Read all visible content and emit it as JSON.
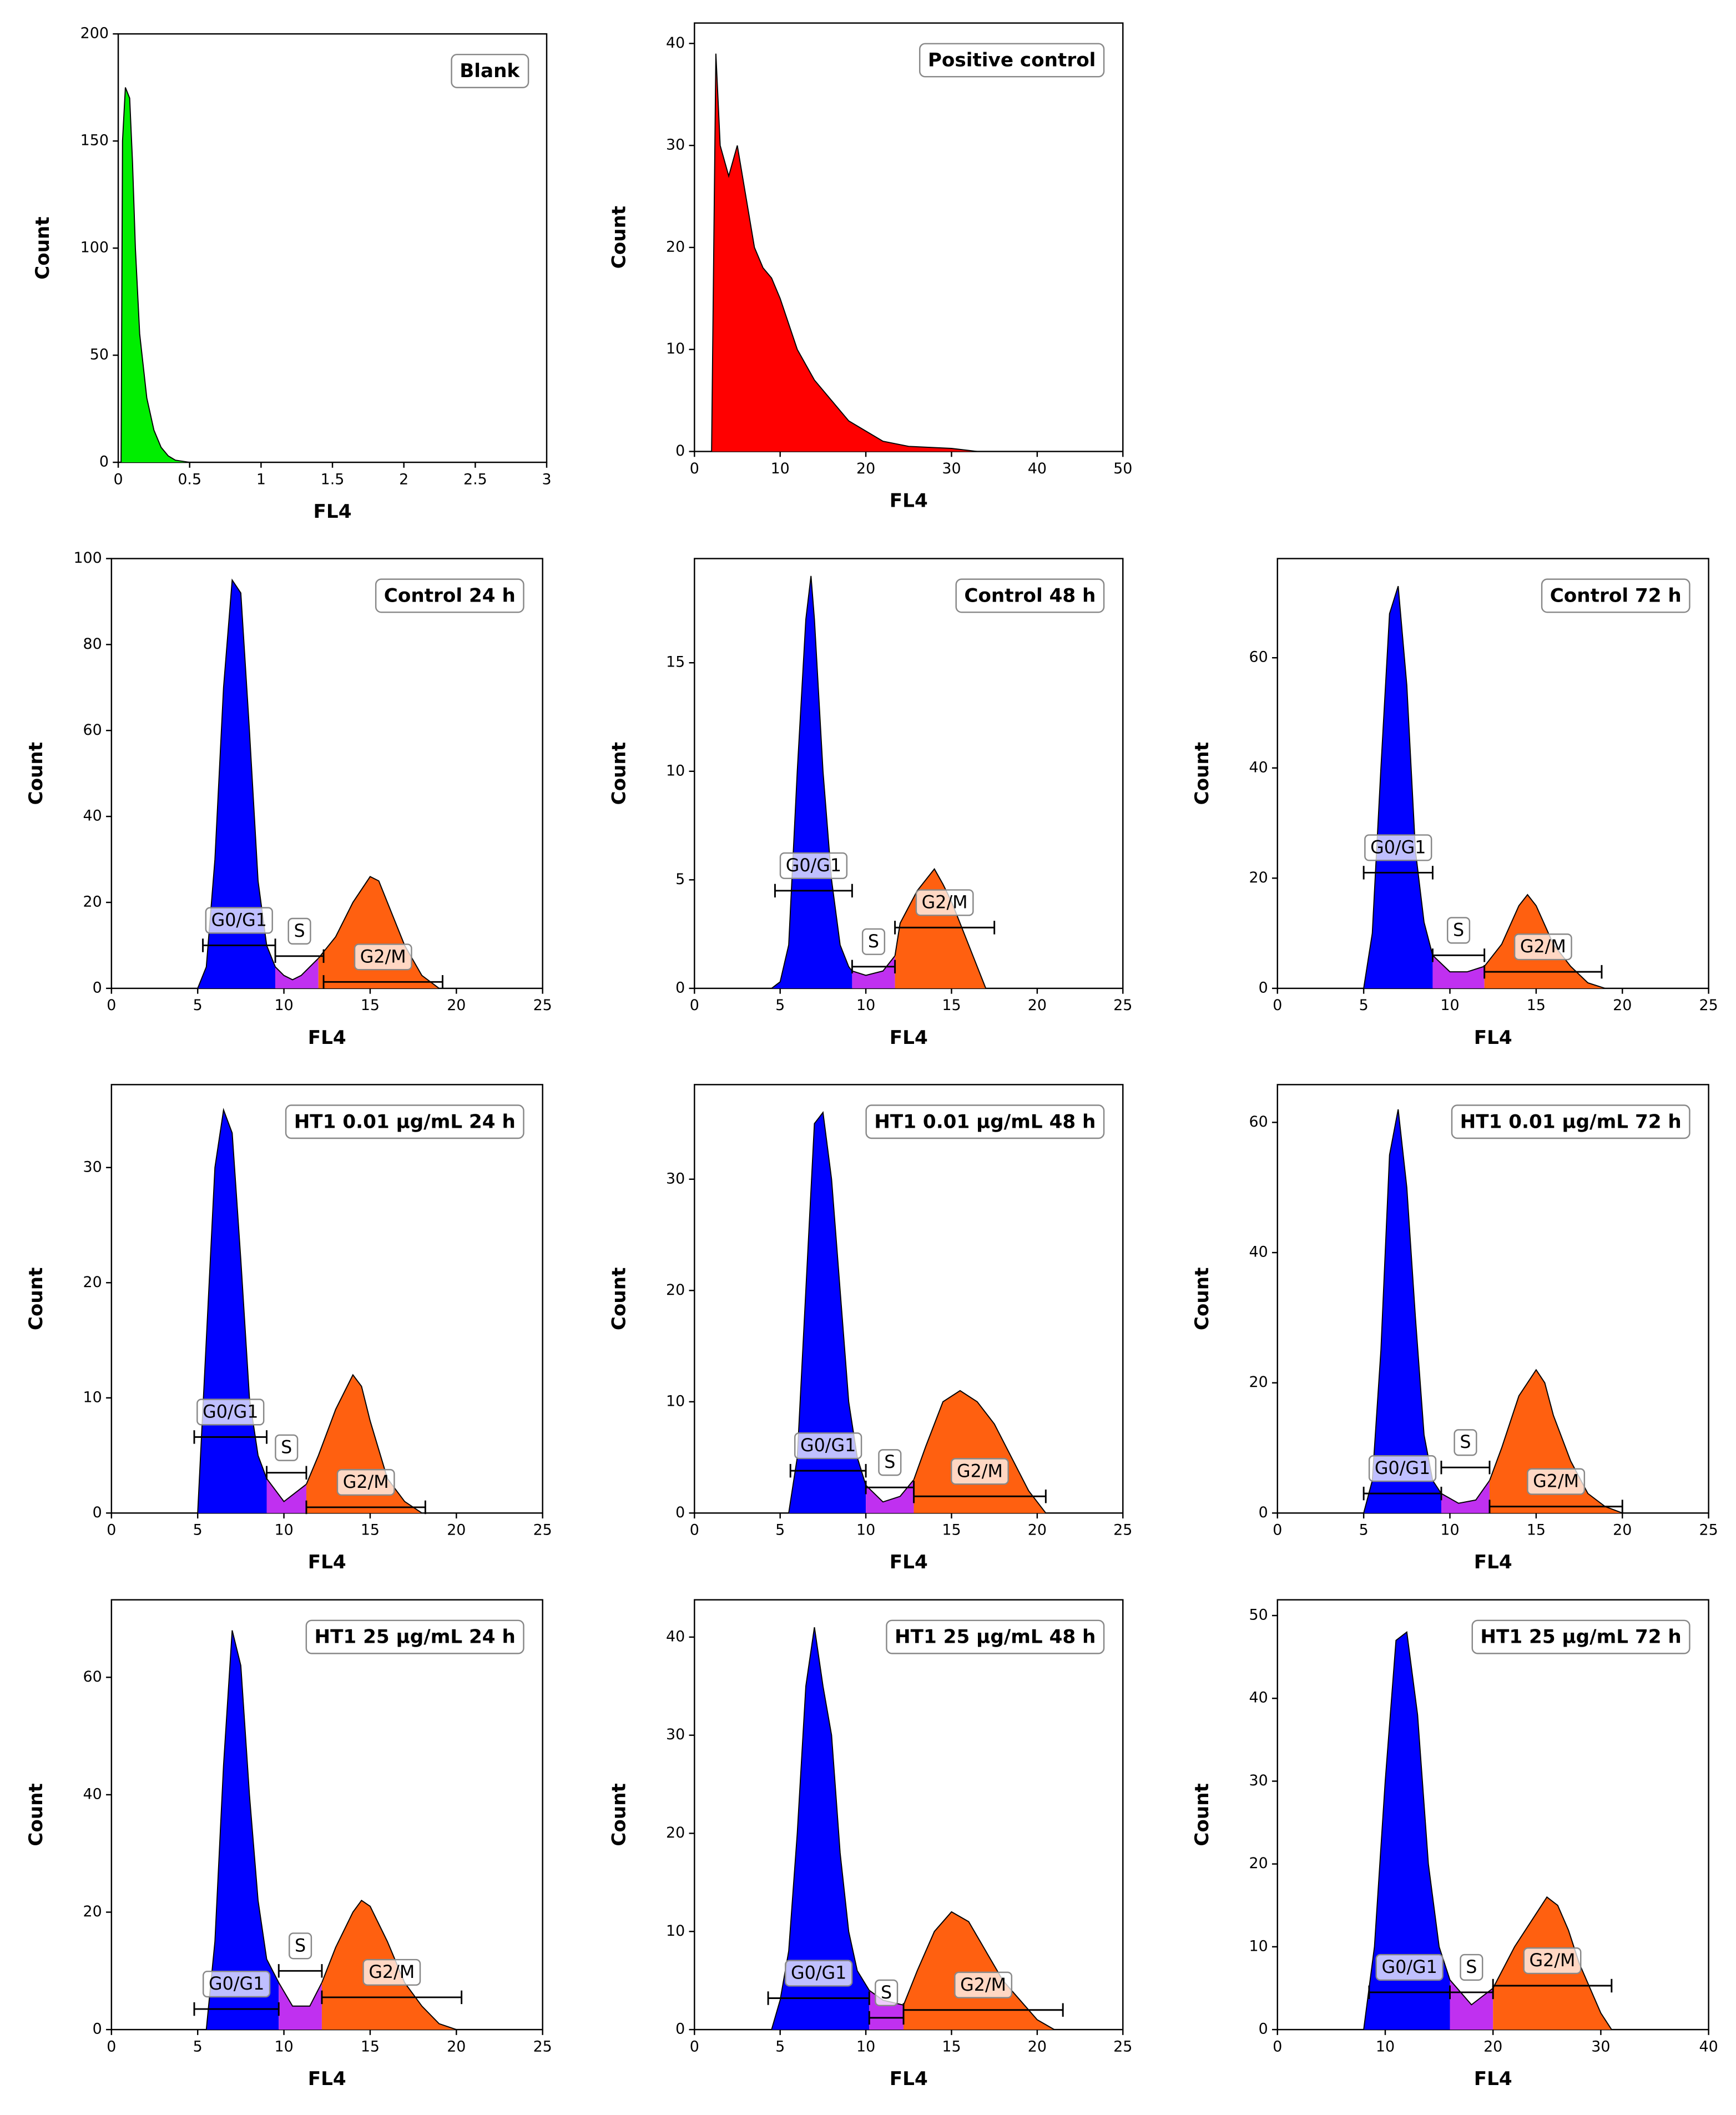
{
  "chart_data": [
    {
      "type": "area",
      "title": "Blank",
      "xlabel": "FL4",
      "ylabel": "Count",
      "xlim": [
        0,
        3
      ],
      "xticks": [
        0,
        0.5,
        1,
        1.5,
        2,
        2.5,
        3
      ],
      "ylim": [
        0,
        200
      ],
      "yticks": [
        0,
        50,
        100,
        150,
        200
      ],
      "series": [
        {
          "color": "#00ee00",
          "x": [
            0.02,
            0.03,
            0.05,
            0.08,
            0.1,
            0.12,
            0.15,
            0.2,
            0.25,
            0.3,
            0.35,
            0.4,
            0.5
          ],
          "values": [
            0,
            150,
            175,
            170,
            140,
            100,
            60,
            30,
            15,
            7,
            3,
            1,
            0
          ]
        }
      ],
      "gates": []
    },
    {
      "type": "area",
      "title": "Positive control",
      "xlabel": "FL4",
      "ylabel": "Count",
      "xlim": [
        0,
        50
      ],
      "xticks": [
        0,
        10,
        20,
        30,
        40,
        50
      ],
      "ylim": [
        0,
        42
      ],
      "yticks": [
        0,
        10,
        20,
        30,
        40
      ],
      "series": [
        {
          "color": "#ff0000",
          "x": [
            2,
            2.5,
            3,
            4,
            5,
            6,
            7,
            8,
            9,
            10,
            12,
            14,
            16,
            18,
            20,
            22,
            25,
            30,
            33
          ],
          "values": [
            0,
            39,
            30,
            27,
            30,
            25,
            20,
            18,
            17,
            15,
            10,
            7,
            5,
            3,
            2,
            1,
            0.5,
            0.3,
            0
          ]
        }
      ],
      "gates": []
    },
    {
      "type": "area",
      "title": "Control 24 h",
      "xlabel": "FL4",
      "ylabel": "Count",
      "xlim": [
        0,
        25
      ],
      "xticks": [
        0,
        5,
        10,
        15,
        20,
        25
      ],
      "ylim": [
        0,
        100
      ],
      "yticks": [
        0,
        20,
        40,
        60,
        80,
        100
      ],
      "series": [
        {
          "color": "#0000ff",
          "x": [
            5,
            5.5,
            6,
            6.5,
            7,
            7.5,
            8,
            8.5,
            9,
            9.5
          ],
          "values": [
            0,
            5,
            30,
            70,
            95,
            92,
            60,
            25,
            10,
            5
          ]
        },
        {
          "color": "#c030f0",
          "x": [
            9.5,
            10,
            10.5,
            11,
            11.5,
            12
          ],
          "values": [
            5,
            3,
            2,
            3,
            5,
            7
          ]
        },
        {
          "color": "#ff6010",
          "x": [
            12,
            13,
            14,
            15,
            15.5,
            16,
            17,
            18,
            19
          ],
          "values": [
            7,
            12,
            20,
            26,
            25,
            20,
            10,
            3,
            0
          ]
        }
      ],
      "gates": [
        {
          "label": "G0/G1",
          "x": [
            5.3,
            9.5
          ],
          "y": 10
        },
        {
          "label": "S",
          "x": [
            9.5,
            12.3
          ],
          "y": 7.5
        },
        {
          "label": "G2/M",
          "x": [
            12.3,
            19.2
          ],
          "y": 1.5
        }
      ]
    },
    {
      "type": "area",
      "title": "Control 48 h",
      "xlabel": "FL4",
      "ylabel": "Count",
      "xlim": [
        0,
        25
      ],
      "xticks": [
        0,
        5,
        10,
        15,
        20,
        25
      ],
      "ylim": [
        0,
        19.8
      ],
      "yticks": [
        0,
        5,
        10,
        15
      ],
      "series": [
        {
          "color": "#0000ff",
          "x": [
            4.5,
            5,
            5.5,
            6,
            6.5,
            6.8,
            7,
            7.5,
            8,
            8.5,
            9,
            9.2
          ],
          "values": [
            0,
            0.3,
            2,
            10,
            17,
            19,
            17,
            10,
            5,
            2,
            1,
            0.8
          ]
        },
        {
          "color": "#c030f0",
          "x": [
            9.2,
            10,
            11,
            11.7
          ],
          "values": [
            0.8,
            0.6,
            0.8,
            1.5
          ]
        },
        {
          "color": "#ff6010",
          "x": [
            11.7,
            12,
            13,
            14,
            14.5,
            15,
            15.5,
            16,
            16.5,
            17
          ],
          "values": [
            1.5,
            3,
            4.5,
            5.5,
            4.8,
            4,
            3,
            2,
            1,
            0
          ]
        }
      ],
      "gates": [
        {
          "label": "G0/G1",
          "x": [
            4.7,
            9.2
          ],
          "y": 4.5
        },
        {
          "label": "S",
          "x": [
            9.2,
            11.7
          ],
          "y": 1
        },
        {
          "label": "G2/M",
          "x": [
            11.7,
            17.5
          ],
          "y": 2.8
        }
      ]
    },
    {
      "type": "area",
      "title": "Control 72 h",
      "xlabel": "FL4",
      "ylabel": "Count",
      "xlim": [
        0,
        25
      ],
      "xticks": [
        0,
        5,
        10,
        15,
        20,
        25
      ],
      "ylim": [
        0,
        78
      ],
      "yticks": [
        0,
        20,
        40,
        60
      ],
      "series": [
        {
          "color": "#0000ff",
          "x": [
            5,
            5.5,
            6,
            6.5,
            7,
            7.5,
            8,
            8.5,
            9
          ],
          "values": [
            0,
            10,
            40,
            68,
            73,
            55,
            25,
            12,
            6
          ]
        },
        {
          "color": "#c030f0",
          "x": [
            9,
            10,
            11,
            12
          ],
          "values": [
            6,
            3,
            3,
            4
          ]
        },
        {
          "color": "#ff6010",
          "x": [
            12,
            13,
            14,
            14.5,
            15,
            16,
            17,
            18,
            19
          ],
          "values": [
            4,
            8,
            15,
            17,
            15,
            8,
            4,
            1,
            0
          ]
        }
      ],
      "gates": [
        {
          "label": "G0/G1",
          "x": [
            5,
            9
          ],
          "y": 21
        },
        {
          "label": "S",
          "x": [
            9,
            12
          ],
          "y": 6
        },
        {
          "label": "G2/M",
          "x": [
            12,
            18.8
          ],
          "y": 3
        }
      ]
    },
    {
      "type": "area",
      "title": "HT1 0.01 μg/mL 24 h",
      "xlabel": "FL4",
      "ylabel": "Count",
      "xlim": [
        0,
        25
      ],
      "xticks": [
        0,
        5,
        10,
        15,
        20,
        25
      ],
      "ylim": [
        0,
        37.2
      ],
      "yticks": [
        0,
        10,
        20,
        30
      ],
      "series": [
        {
          "color": "#0000ff",
          "x": [
            5,
            5.5,
            6,
            6.5,
            7,
            7.5,
            8,
            8.5,
            9
          ],
          "values": [
            0,
            15,
            30,
            35,
            33,
            22,
            10,
            5,
            3
          ]
        },
        {
          "color": "#c030f0",
          "x": [
            9,
            10,
            11.3
          ],
          "values": [
            3,
            1,
            2.5
          ]
        },
        {
          "color": "#ff6010",
          "x": [
            11.3,
            12,
            13,
            14,
            14.5,
            15,
            16,
            17,
            18
          ],
          "values": [
            2.5,
            5,
            9,
            12,
            11,
            8,
            3,
            1,
            0
          ]
        }
      ],
      "gates": [
        {
          "label": "G0/G1",
          "x": [
            4.8,
            9
          ],
          "y": 6.6
        },
        {
          "label": "S",
          "x": [
            9,
            11.3
          ],
          "y": 3.5
        },
        {
          "label": "G2/M",
          "x": [
            11.3,
            18.2
          ],
          "y": 0.5
        }
      ]
    },
    {
      "type": "area",
      "title": "HT1 0.01 μg/mL 48 h",
      "xlabel": "FL4",
      "ylabel": "Count",
      "xlim": [
        0,
        25
      ],
      "xticks": [
        0,
        5,
        10,
        15,
        20,
        25
      ],
      "ylim": [
        0,
        38.5
      ],
      "yticks": [
        0,
        10,
        20,
        30
      ],
      "series": [
        {
          "color": "#0000ff",
          "x": [
            5.5,
            6,
            6.5,
            7,
            7.5,
            8,
            8.5,
            9,
            9.5,
            10
          ],
          "values": [
            0,
            5,
            20,
            35,
            36,
            30,
            20,
            10,
            5,
            2.5
          ]
        },
        {
          "color": "#c030f0",
          "x": [
            10,
            11,
            12,
            12.8
          ],
          "values": [
            2.5,
            1,
            1.5,
            3
          ]
        },
        {
          "color": "#ff6010",
          "x": [
            12.8,
            13.5,
            14.5,
            15.5,
            16.5,
            17.5,
            18.5,
            19.5,
            20.5
          ],
          "values": [
            3,
            6,
            10,
            11,
            10,
            8,
            5,
            2,
            0
          ]
        }
      ],
      "gates": [
        {
          "label": "G0/G1",
          "x": [
            5.6,
            10
          ],
          "y": 3.8
        },
        {
          "label": "S",
          "x": [
            10,
            12.8
          ],
          "y": 2.3
        },
        {
          "label": "G2/M",
          "x": [
            12.8,
            20.5
          ],
          "y": 1.5
        }
      ]
    },
    {
      "type": "area",
      "title": "HT1 0.01 μg/mL 72 h",
      "xlabel": "FL4",
      "ylabel": "Count",
      "xlim": [
        0,
        25
      ],
      "xticks": [
        0,
        5,
        10,
        15,
        20,
        25
      ],
      "ylim": [
        0,
        65.8
      ],
      "yticks": [
        0,
        20,
        40,
        60
      ],
      "series": [
        {
          "color": "#0000ff",
          "x": [
            5,
            5.5,
            6,
            6.5,
            7,
            7.5,
            8,
            8.5,
            9,
            9.5
          ],
          "values": [
            0,
            5,
            25,
            55,
            62,
            50,
            30,
            12,
            5,
            3
          ]
        },
        {
          "color": "#c030f0",
          "x": [
            9.5,
            10.5,
            11.5,
            12.3
          ],
          "values": [
            3,
            1.5,
            2,
            5
          ]
        },
        {
          "color": "#ff6010",
          "x": [
            12.3,
            13,
            14,
            15,
            15.5,
            16,
            17,
            18,
            19,
            20
          ],
          "values": [
            5,
            10,
            18,
            22,
            20,
            15,
            8,
            3,
            1,
            0
          ]
        }
      ],
      "gates": [
        {
          "label": "G0/G1",
          "x": [
            5,
            9.5
          ],
          "y": 3
        },
        {
          "label": "S",
          "x": [
            9.5,
            12.3
          ],
          "y": 7
        },
        {
          "label": "G2/M",
          "x": [
            12.3,
            20
          ],
          "y": 1
        }
      ]
    },
    {
      "type": "area",
      "title": "HT1 25 μg/mL 24 h",
      "xlabel": "FL4",
      "ylabel": "Count",
      "xlim": [
        0,
        25
      ],
      "xticks": [
        0,
        5,
        10,
        15,
        20,
        25
      ],
      "ylim": [
        0,
        73.2
      ],
      "yticks": [
        0,
        20,
        40,
        60
      ],
      "series": [
        {
          "color": "#0000ff",
          "x": [
            5.5,
            6,
            6.5,
            7,
            7.5,
            8,
            8.5,
            9,
            9.7
          ],
          "values": [
            0,
            15,
            45,
            68,
            62,
            40,
            22,
            12,
            8
          ]
        },
        {
          "color": "#c030f0",
          "x": [
            9.7,
            10.5,
            11.5,
            12.2
          ],
          "values": [
            8,
            4,
            4,
            8
          ]
        },
        {
          "color": "#ff6010",
          "x": [
            12.2,
            13,
            14,
            14.5,
            15,
            16,
            17,
            18,
            19,
            20
          ],
          "values": [
            8,
            14,
            20,
            22,
            21,
            15,
            8,
            4,
            1,
            0
          ]
        }
      ],
      "gates": [
        {
          "label": "G0/G1",
          "x": [
            4.8,
            9.7
          ],
          "y": 3.5
        },
        {
          "label": "S",
          "x": [
            9.7,
            12.2
          ],
          "y": 10
        },
        {
          "label": "G2/M",
          "x": [
            12.2,
            20.3
          ],
          "y": 5.5
        }
      ]
    },
    {
      "type": "area",
      "title": "HT1 25 μg/mL 48 h",
      "xlabel": "FL4",
      "ylabel": "Count",
      "xlim": [
        0,
        25
      ],
      "xticks": [
        0,
        5,
        10,
        15,
        20,
        25
      ],
      "ylim": [
        0,
        43.8
      ],
      "yticks": [
        0,
        10,
        20,
        30,
        40
      ],
      "series": [
        {
          "color": "#0000ff",
          "x": [
            4.5,
            5,
            5.5,
            6,
            6.5,
            7,
            7.5,
            8,
            8.5,
            9,
            9.5,
            10.2
          ],
          "values": [
            0,
            3,
            8,
            20,
            35,
            41,
            35,
            30,
            18,
            10,
            6,
            4
          ]
        },
        {
          "color": "#c030f0",
          "x": [
            10.2,
            11,
            12.2
          ],
          "values": [
            4,
            3,
            2.5
          ]
        },
        {
          "color": "#ff6010",
          "x": [
            12.2,
            13,
            14,
            15,
            16,
            17,
            18,
            19,
            20,
            21
          ],
          "values": [
            2.5,
            6,
            10,
            12,
            11,
            8,
            5,
            3,
            1,
            0
          ]
        }
      ],
      "gates": [
        {
          "label": "G0/G1",
          "x": [
            4.3,
            10.2
          ],
          "y": 3.2
        },
        {
          "label": "S",
          "x": [
            10.2,
            12.2
          ],
          "y": 1.2
        },
        {
          "label": "G2/M",
          "x": [
            12.2,
            21.5
          ],
          "y": 2
        }
      ]
    },
    {
      "type": "area",
      "title": "HT1 25 μg/mL 72 h",
      "xlabel": "FL4",
      "ylabel": "Count",
      "xlim": [
        0,
        40
      ],
      "xticks": [
        0,
        10,
        20,
        30,
        40
      ],
      "ylim": [
        0,
        51.9
      ],
      "yticks": [
        0,
        10,
        20,
        30,
        40,
        50
      ],
      "series": [
        {
          "color": "#0000ff",
          "x": [
            8,
            9,
            10,
            11,
            12,
            13,
            14,
            15,
            16
          ],
          "values": [
            0,
            10,
            30,
            47,
            48,
            38,
            20,
            10,
            6
          ]
        },
        {
          "color": "#c030f0",
          "x": [
            16,
            18,
            20
          ],
          "values": [
            6,
            3,
            5
          ]
        },
        {
          "color": "#ff6010",
          "x": [
            20,
            22,
            24,
            25,
            26,
            27,
            28,
            29,
            30,
            31
          ],
          "values": [
            5,
            10,
            14,
            16,
            15,
            12,
            8,
            5,
            2,
            0
          ]
        }
      ],
      "gates": [
        {
          "label": "G0/G1",
          "x": [
            8.5,
            16
          ],
          "y": 4.5
        },
        {
          "label": "S",
          "x": [
            16,
            20
          ],
          "y": 4.5
        },
        {
          "label": "G2/M",
          "x": [
            20,
            31
          ],
          "y": 5.3
        }
      ]
    }
  ]
}
